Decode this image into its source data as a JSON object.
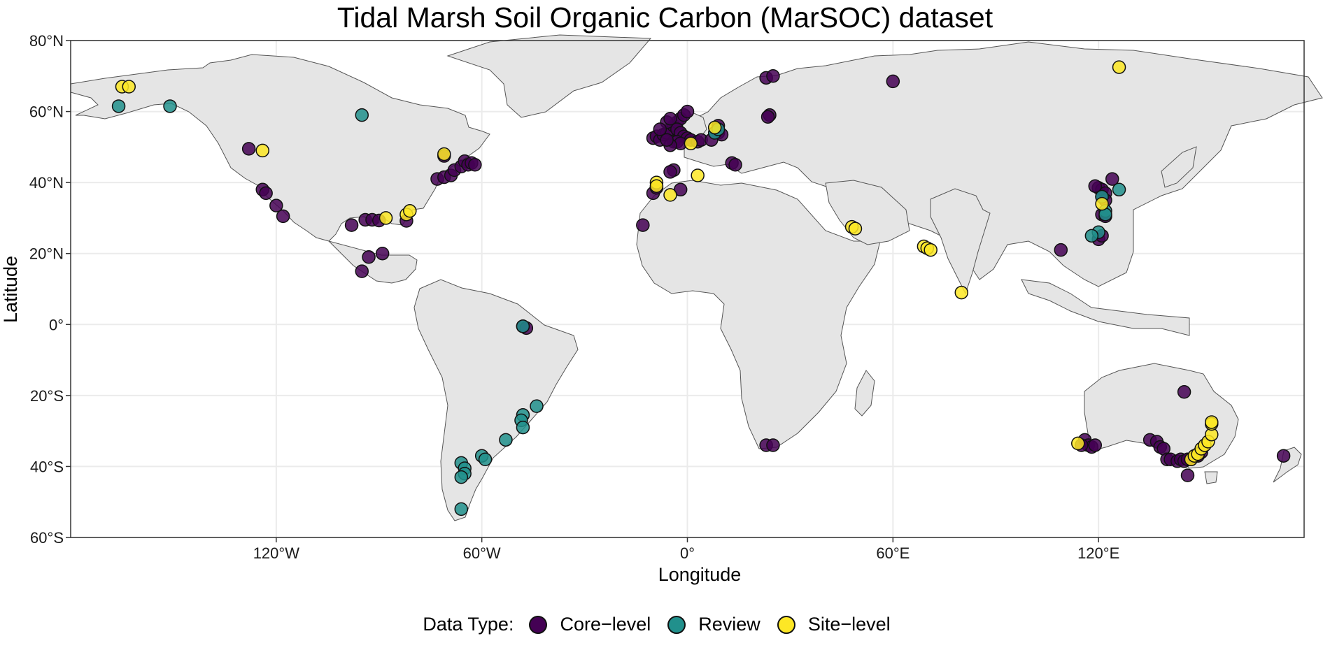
{
  "title": "Tidal Marsh Soil Organic Carbon (MarSOC) dataset",
  "xlabel": "Longitude",
  "ylabel": "Latitude",
  "legend": {
    "title": "Data Type:",
    "items": [
      {
        "label": "Core−level",
        "color": "#440154"
      },
      {
        "label": "Review",
        "color": "#21908C"
      },
      {
        "label": "Site−level",
        "color": "#FDE725"
      }
    ]
  },
  "map": {
    "land_color": "#e5e5e5",
    "border_color": "#555555",
    "grid_color": "#ebebeb",
    "xlim": [
      -180,
      180
    ],
    "ylim": [
      -60,
      80
    ]
  },
  "x_ticks": [
    {
      "value": -120,
      "label": "120°W"
    },
    {
      "value": -60,
      "label": "60°W"
    },
    {
      "value": 0,
      "label": "0°"
    },
    {
      "value": 60,
      "label": "60°E"
    },
    {
      "value": 120,
      "label": "120°E"
    }
  ],
  "y_ticks": [
    {
      "value": 80,
      "label": "80°N"
    },
    {
      "value": 60,
      "label": "60°N"
    },
    {
      "value": 40,
      "label": "40°N"
    },
    {
      "value": 20,
      "label": "20°N"
    },
    {
      "value": 0,
      "label": "0°"
    },
    {
      "value": -20,
      "label": "20°S"
    },
    {
      "value": -40,
      "label": "40°S"
    },
    {
      "value": -60,
      "label": "60°S"
    }
  ],
  "chart_data": {
    "type": "scatter",
    "title": "Tidal Marsh Soil Organic Carbon (MarSOC) dataset",
    "xlabel": "Longitude",
    "ylabel": "Latitude",
    "xlim": [
      -180,
      180
    ],
    "ylim": [
      -60,
      80
    ],
    "legend_position": "bottom",
    "series": [
      {
        "name": "Core−level",
        "color": "#440154",
        "points": [
          [
            -128,
            49.5
          ],
          [
            -124,
            38
          ],
          [
            -123,
            37
          ],
          [
            -120,
            33.5
          ],
          [
            -118,
            30.5
          ],
          [
            -98,
            28
          ],
          [
            -94,
            29.5
          ],
          [
            -92,
            29.5
          ],
          [
            -90,
            29.3
          ],
          [
            -82,
            29.2
          ],
          [
            -93,
            19
          ],
          [
            -89,
            20
          ],
          [
            -95,
            15
          ],
          [
            -73,
            41
          ],
          [
            -71,
            41.5
          ],
          [
            -69,
            42
          ],
          [
            -68,
            43.5
          ],
          [
            -66,
            44.5
          ],
          [
            -65,
            46
          ],
          [
            -64,
            45
          ],
          [
            -63,
            45.5
          ],
          [
            -62,
            45
          ],
          [
            -71,
            47.5
          ],
          [
            -48,
            -0.5
          ],
          [
            -47,
            -1
          ],
          [
            -10,
            52.5
          ],
          [
            -9,
            53
          ],
          [
            -8,
            52
          ],
          [
            -7,
            53.5
          ],
          [
            -6,
            54
          ],
          [
            -5,
            55
          ],
          [
            -4,
            56
          ],
          [
            -3,
            57
          ],
          [
            -2,
            58
          ],
          [
            -1,
            59
          ],
          [
            0,
            60
          ],
          [
            -6,
            57
          ],
          [
            -5,
            58
          ],
          [
            -3,
            55
          ],
          [
            -2,
            54
          ],
          [
            -1,
            53
          ],
          [
            0,
            52.5
          ],
          [
            1,
            52
          ],
          [
            -4,
            51.5
          ],
          [
            -3,
            51.5
          ],
          [
            -2,
            51
          ],
          [
            -5,
            50.5
          ],
          [
            3,
            51.5
          ],
          [
            4,
            52
          ],
          [
            9,
            54
          ],
          [
            10,
            53.5
          ],
          [
            9,
            56
          ],
          [
            7,
            52
          ],
          [
            -6,
            52
          ],
          [
            -8,
            55
          ],
          [
            -4,
            43.5
          ],
          [
            -5,
            43
          ],
          [
            -10,
            37
          ],
          [
            -9,
            38.5
          ],
          [
            -2,
            38
          ],
          [
            13,
            45.5
          ],
          [
            14,
            45
          ],
          [
            23,
            69.5
          ],
          [
            25,
            70
          ],
          [
            24,
            59
          ],
          [
            23.5,
            58.5
          ],
          [
            60,
            68.5
          ],
          [
            -13,
            28
          ],
          [
            120,
            38.5
          ],
          [
            121,
            38
          ],
          [
            122,
            37
          ],
          [
            119,
            39
          ],
          [
            121,
            36
          ],
          [
            122,
            35
          ],
          [
            121,
            31
          ],
          [
            122,
            30.5
          ],
          [
            120,
            24
          ],
          [
            121,
            25
          ],
          [
            124,
            41
          ],
          [
            109,
            21
          ],
          [
            23,
            -34
          ],
          [
            25,
            -34
          ],
          [
            116,
            -32.5
          ],
          [
            117,
            -34
          ],
          [
            118,
            -34.5
          ],
          [
            119,
            -34
          ],
          [
            115,
            -34
          ],
          [
            135,
            -32.5
          ],
          [
            137,
            -33
          ],
          [
            138,
            -34.5
          ],
          [
            139,
            -35
          ],
          [
            140,
            -38
          ],
          [
            141,
            -38
          ],
          [
            143,
            -38.5
          ],
          [
            144,
            -38
          ],
          [
            145,
            -38.5
          ],
          [
            146,
            -38
          ],
          [
            147,
            -38
          ],
          [
            146,
            -42.5
          ],
          [
            145,
            -19
          ],
          [
            150,
            -36
          ],
          [
            149,
            -37
          ],
          [
            174,
            -37
          ]
        ]
      },
      {
        "name": "Review",
        "color": "#21908C",
        "points": [
          [
            -166,
            61.5
          ],
          [
            -151,
            61.5
          ],
          [
            -95,
            59
          ],
          [
            -48,
            -0.5
          ],
          [
            -48,
            -25.5
          ],
          [
            -48.5,
            -27
          ],
          [
            -48,
            -29
          ],
          [
            -53,
            -32.5
          ],
          [
            -60,
            -37
          ],
          [
            -59,
            -38
          ],
          [
            -66,
            -39
          ],
          [
            -65,
            -40.5
          ],
          [
            -65,
            -42
          ],
          [
            -66,
            -43
          ],
          [
            -66,
            -52
          ],
          [
            -44,
            -23
          ],
          [
            8,
            54
          ],
          [
            9,
            55
          ],
          [
            121,
            36
          ],
          [
            122,
            32
          ],
          [
            122,
            31
          ],
          [
            120,
            26
          ],
          [
            118,
            25
          ],
          [
            126,
            38
          ]
        ]
      },
      {
        "name": "Site−level",
        "color": "#FDE725",
        "points": [
          [
            -165,
            67
          ],
          [
            -163,
            67
          ],
          [
            -124,
            49
          ],
          [
            -88,
            30
          ],
          [
            -82,
            31
          ],
          [
            -81,
            32
          ],
          [
            -71,
            48
          ],
          [
            -9,
            40
          ],
          [
            -9,
            39
          ],
          [
            -5,
            36.5
          ],
          [
            1,
            51
          ],
          [
            3,
            42
          ],
          [
            8,
            55.5
          ],
          [
            48,
            27.5
          ],
          [
            49,
            27
          ],
          [
            69,
            22
          ],
          [
            70,
            21.5
          ],
          [
            71,
            21
          ],
          [
            80,
            9
          ],
          [
            121,
            34
          ],
          [
            126,
            72.5
          ],
          [
            114,
            -33.5
          ],
          [
            147,
            -38
          ],
          [
            148,
            -37
          ],
          [
            149,
            -36.5
          ],
          [
            150,
            -35
          ],
          [
            151,
            -34
          ],
          [
            152,
            -33
          ],
          [
            153,
            -31
          ],
          [
            153,
            -28
          ],
          [
            153,
            -27.5
          ]
        ]
      }
    ]
  }
}
